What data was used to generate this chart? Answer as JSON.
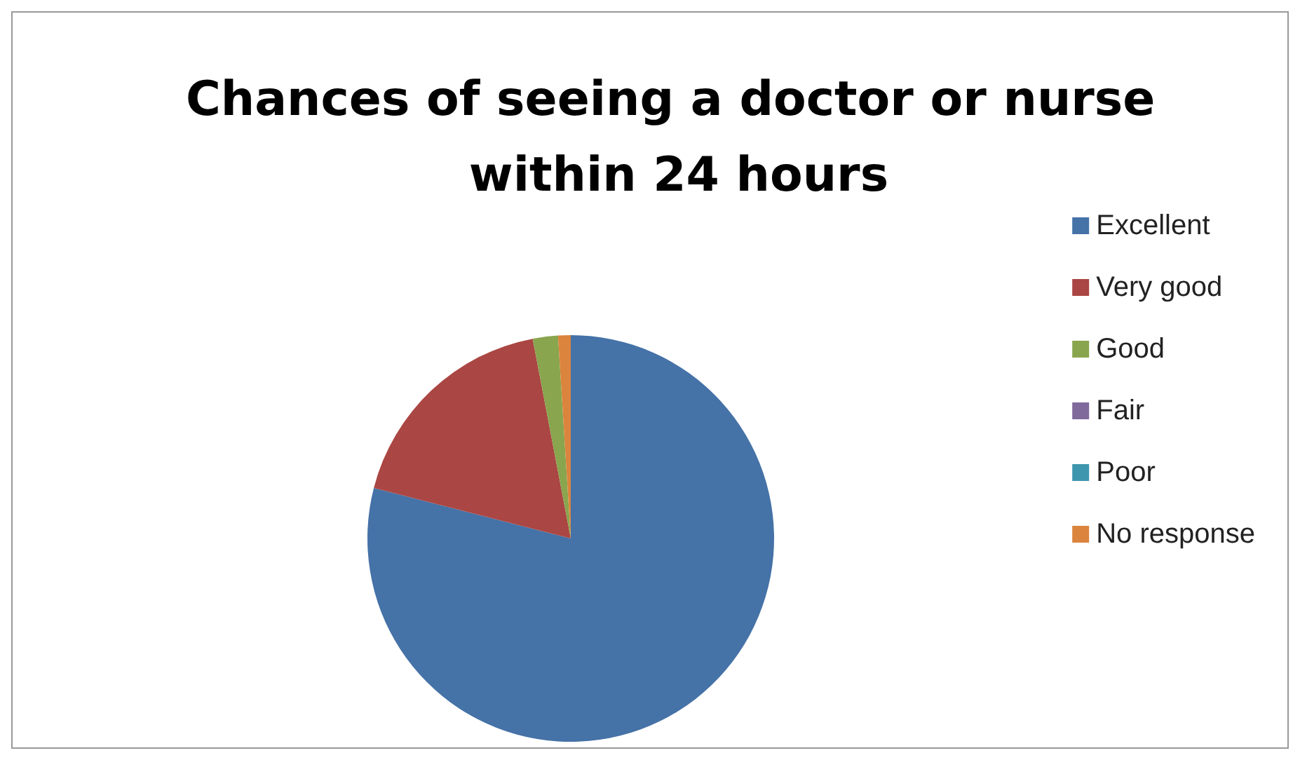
{
  "chart_data": {
    "type": "pie",
    "title": "Chances of seeing a doctor or nurse within 24 hours",
    "categories": [
      "Excellent",
      "Very good",
      "Good",
      "Fair",
      "Poor",
      "No response"
    ],
    "values": [
      79,
      18,
      2,
      0,
      0,
      1
    ],
    "colors": [
      "#4572a7",
      "#aa4643",
      "#89a54e",
      "#80699b",
      "#3d96ae",
      "#db843d"
    ],
    "legend": "right"
  }
}
